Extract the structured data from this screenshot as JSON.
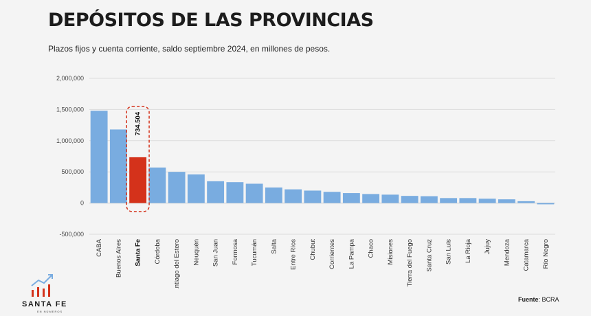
{
  "title": "DEPÓSITOS DE LAS PROVINCIAS",
  "subtitle": "Plazos fijos y cuenta corriente, saldo septiembre 2024, en millones de pesos.",
  "brand": {
    "name": "SANTA FE",
    "tagline": "EN NÚMEROS"
  },
  "source": {
    "label": "Fuente",
    "value": ": BCRA"
  },
  "colors": {
    "bar": "#79ace0",
    "highlight": "#d4321b",
    "highlight_border": "#d4321b"
  },
  "chart_data": {
    "type": "bar",
    "title": "DEPÓSITOS DE LAS PROVINCIAS",
    "ylim": [
      -500000,
      2000000
    ],
    "yticks": [
      -500000,
      0,
      500000,
      1000000,
      1500000,
      2000000
    ],
    "ytick_labels": [
      "-500,000",
      "0",
      "500,000",
      "1,000,000",
      "1,500,000",
      "2,000,000"
    ],
    "grid": true,
    "categories": [
      "CABA",
      "Buenos Aires",
      "Santa Fe",
      "Córdoba",
      "Santiago del Estero",
      "Neuquén",
      "San Juan",
      "Formosa",
      "Tucumán",
      "Salta",
      "Entre Ríos",
      "Chubut",
      "Corrientes",
      "La Pampa",
      "Chaco",
      "Misiones",
      "Tierra del Fuego",
      "Santa Cruz",
      "San Luis",
      "La Rioja",
      "Jujuy",
      "Mendoza",
      "Catamarca",
      "Río Negro"
    ],
    "values": [
      1480000,
      1180000,
      734504,
      570000,
      500000,
      460000,
      350000,
      335000,
      310000,
      250000,
      220000,
      200000,
      180000,
      160000,
      145000,
      135000,
      115000,
      110000,
      80000,
      80000,
      70000,
      60000,
      30000,
      -20000
    ],
    "highlight_index": 2,
    "highlight_label": "734.504"
  }
}
